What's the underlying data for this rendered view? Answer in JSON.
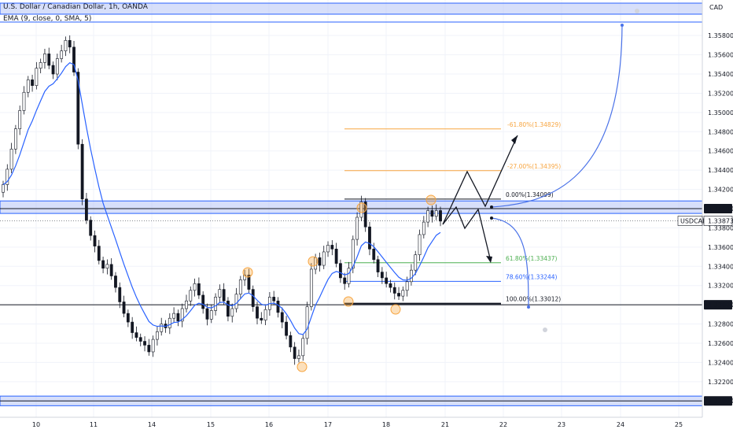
{
  "legend": {
    "symbol_line": "U.S. Dollar / Canadian Dollar, 1h, OANDA",
    "indicator_line": "EMA (9, close, 0, SMA, 5)"
  },
  "currency": "CAD",
  "colors": {
    "up": "#131722",
    "down": "#131722",
    "ema": "#2962ff",
    "zone_fill": "#b7c4f5",
    "zone_border": "#2962ff",
    "fib_ext": "#f7a540",
    "fib_618": "#4caf50",
    "fib_786": "#2962ff",
    "fib_main": "#131722",
    "marker": "#f7a540",
    "projection": "#4a72e8",
    "price_badge": "#131722"
  },
  "chart_data": {
    "type": "candlestick",
    "symbol": "USDCAD",
    "timeframe": "1h",
    "ylim": [
      1.3183,
      1.3617
    ],
    "y_ticks": [
      "1.35800",
      "1.35600",
      "1.35400",
      "1.35200",
      "1.35000",
      "1.34800",
      "1.34600",
      "1.34400",
      "1.34200",
      "1.34000",
      "1.33800",
      "1.33600",
      "1.33400",
      "1.33200",
      "1.33000",
      "1.32800",
      "1.32600",
      "1.32400",
      "1.32200",
      "1.32000"
    ],
    "x_ticks": [
      "10",
      "11",
      "14",
      "15",
      "16",
      "17",
      "18",
      "21",
      "22",
      "23",
      "24",
      "25"
    ],
    "highlighted_price_labels": [
      "1.34000",
      "1.33000",
      "1.32000"
    ],
    "current_price_label": "1.33873",
    "current_price_symbol": "USDCAD",
    "horizontal_levels": [
      1.34,
      1.33,
      1.32,
      1.36
    ],
    "fibonacci": [
      {
        "label": "-61.80%(1.34829)",
        "value": 1.34829
      },
      {
        "label": "-27.00%(1.34395)",
        "value": 1.34395
      },
      {
        "label": "0.00%(1.34099)",
        "value": 1.34099
      },
      {
        "label": "61.80%(1.33437)",
        "value": 1.33437
      },
      {
        "label": "78.60%(1.33244)",
        "value": 1.33244
      },
      {
        "label": "100.00%(1.33012)",
        "value": 1.33012
      }
    ],
    "ohlc_close_path": [
      1.3425,
      1.3441,
      1.3462,
      1.3483,
      1.3502,
      1.3521,
      1.3534,
      1.3528,
      1.3546,
      1.3552,
      1.3561,
      1.3549,
      1.354,
      1.3556,
      1.3564,
      1.3575,
      1.3568,
      1.3542,
      1.3467,
      1.341,
      1.3388,
      1.3372,
      1.3361,
      1.3346,
      1.3338,
      1.3342,
      1.333,
      1.3318,
      1.3303,
      1.3291,
      1.3282,
      1.3271,
      1.3266,
      1.3262,
      1.3258,
      1.3251,
      1.3264,
      1.3272,
      1.328,
      1.3276,
      1.3286,
      1.3291,
      1.3283,
      1.3296,
      1.3304,
      1.3315,
      1.3322,
      1.331,
      1.3296,
      1.3285,
      1.3294,
      1.3308,
      1.3316,
      1.3304,
      1.3288,
      1.3296,
      1.3311,
      1.3326,
      1.3331,
      1.3316,
      1.3298,
      1.3286,
      1.3284,
      1.3295,
      1.3308,
      1.3304,
      1.3292,
      1.3282,
      1.3268,
      1.3256,
      1.3244,
      1.3247,
      1.3265,
      1.3298,
      1.3337,
      1.3349,
      1.3341,
      1.3355,
      1.3362,
      1.3358,
      1.3343,
      1.3328,
      1.3322,
      1.3338,
      1.3368,
      1.3391,
      1.3407,
      1.3381,
      1.3358,
      1.3347,
      1.3334,
      1.3328,
      1.3322,
      1.3318,
      1.3312,
      1.3309,
      1.3315,
      1.3324,
      1.3336,
      1.3352,
      1.3373,
      1.3386,
      1.3398,
      1.3392,
      1.3398,
      1.3387
    ]
  },
  "projection": {
    "up_target_marker": "1.36000",
    "down_target_marker": "1.32800"
  }
}
